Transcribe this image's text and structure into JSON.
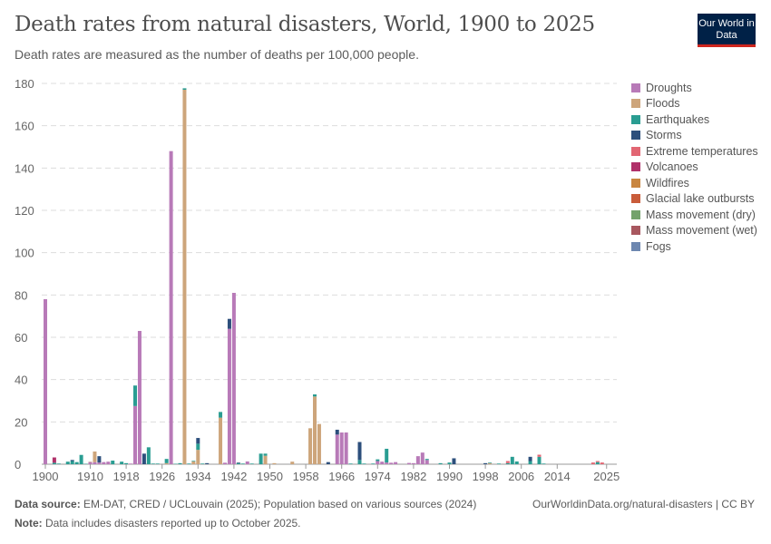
{
  "header": {
    "title": "Death rates from natural disasters, World, 1900 to 2025",
    "subtitle": "Death rates are measured as the number of deaths per 100,000 people.",
    "logo": "Our World in Data"
  },
  "footer": {
    "source_label": "Data source:",
    "source": " EM-DAT, CRED / UCLouvain (2025); Population based on various sources (2024)",
    "url": "OurWorldinData.org/natural-disasters | CC BY",
    "note_label": "Note:",
    "note": " Data includes disasters reported up to October 2025."
  },
  "chart_data": {
    "type": "bar",
    "stacked": true,
    "title": "Death rates from natural disasters, World, 1900 to 2025",
    "ylim": [
      0,
      180
    ],
    "xlim": [
      1900,
      2025
    ],
    "grid": "horizontal-dashed",
    "legend": "right",
    "yticks": [
      "0",
      "20",
      "40",
      "60",
      "80",
      "100",
      "120",
      "140",
      "160",
      "180"
    ],
    "xticks": [
      "1900",
      "1910",
      "1918",
      "1926",
      "1934",
      "1942",
      "1950",
      "1958",
      "1966",
      "1974",
      "1982",
      "1990",
      "1998",
      "2006",
      "2014",
      "2025"
    ],
    "series": [
      {
        "name": "Droughts",
        "color": "#b87ab8",
        "points": [
          [
            1900,
            78
          ],
          [
            1910,
            1
          ],
          [
            1911,
            1
          ],
          [
            1912,
            0.8
          ],
          [
            1913,
            1
          ],
          [
            1914,
            1.2
          ],
          [
            1919,
            0.3
          ],
          [
            1920,
            27.5
          ],
          [
            1921,
            63
          ],
          [
            1928,
            148
          ],
          [
            1940,
            0.7
          ],
          [
            1941,
            64
          ],
          [
            1942,
            81
          ],
          [
            1945,
            1.3
          ],
          [
            1965,
            14
          ],
          [
            1966,
            15
          ],
          [
            1967,
            15
          ],
          [
            1974,
            1.5
          ],
          [
            1975,
            1.2
          ],
          [
            1976,
            0.8
          ],
          [
            1977,
            0.7
          ],
          [
            1978,
            1
          ],
          [
            1981,
            0.6
          ],
          [
            1982,
            0.5
          ],
          [
            1983,
            3.8
          ],
          [
            1984,
            5.5
          ],
          [
            1985,
            2
          ]
        ]
      },
      {
        "name": "Floods",
        "color": "#cda57b",
        "points": [
          [
            1910,
            0.2
          ],
          [
            1911,
            5
          ],
          [
            1927,
            0.5
          ],
          [
            1931,
            177
          ],
          [
            1933,
            1.3
          ],
          [
            1934,
            6.8
          ],
          [
            1939,
            22
          ],
          [
            1949,
            4
          ],
          [
            1951,
            0.5
          ],
          [
            1955,
            1.2
          ],
          [
            1959,
            17
          ],
          [
            1960,
            32
          ],
          [
            1961,
            19
          ],
          [
            1999,
            0.5
          ]
        ]
      },
      {
        "name": "Earthquakes",
        "color": "#2a9d92",
        "points": [
          [
            1902,
            0.7
          ],
          [
            1903,
            0.3
          ],
          [
            1905,
            1.2
          ],
          [
            1906,
            1.5
          ],
          [
            1907,
            1
          ],
          [
            1908,
            4.4
          ],
          [
            1909,
            0.2
          ],
          [
            1915,
            1.7
          ],
          [
            1917,
            1.2
          ],
          [
            1918,
            0.5
          ],
          [
            1920,
            9.7
          ],
          [
            1923,
            8
          ],
          [
            1924,
            0.3
          ],
          [
            1925,
            0.3
          ],
          [
            1927,
            2
          ],
          [
            1929,
            0.2
          ],
          [
            1930,
            0.5
          ],
          [
            1931,
            0.7
          ],
          [
            1932,
            0.3
          ],
          [
            1933,
            0.3
          ],
          [
            1934,
            2.9
          ],
          [
            1935,
            0.3
          ],
          [
            1939,
            2.7
          ],
          [
            1943,
            0.5
          ],
          [
            1944,
            0.3
          ],
          [
            1946,
            0.3
          ],
          [
            1948,
            5
          ],
          [
            1949,
            1
          ],
          [
            1960,
            1
          ],
          [
            1968,
            0.3
          ],
          [
            1970,
            2
          ],
          [
            1971,
            0.3
          ],
          [
            1973,
            0.3
          ],
          [
            1974,
            0.8
          ],
          [
            1976,
            6.5
          ],
          [
            1985,
            0.5
          ],
          [
            1988,
            0.5
          ],
          [
            1990,
            0.8
          ],
          [
            1999,
            0.3
          ],
          [
            2001,
            0.3
          ],
          [
            2003,
            0.5
          ],
          [
            2004,
            3.5
          ],
          [
            2005,
            1.3
          ],
          [
            2008,
            1.5
          ],
          [
            2010,
            3.5
          ],
          [
            2011,
            0.3
          ],
          [
            2023,
            1
          ]
        ]
      },
      {
        "name": "Storms",
        "color": "#2d4f7c",
        "points": [
          [
            1906,
            0.5
          ],
          [
            1912,
            3
          ],
          [
            1922,
            5
          ],
          [
            1934,
            2.7
          ],
          [
            1936,
            0.5
          ],
          [
            1941,
            4.7
          ],
          [
            1943,
            0.3
          ],
          [
            1963,
            1
          ],
          [
            1965,
            2.3
          ],
          [
            1970,
            8.5
          ],
          [
            1991,
            2.8
          ],
          [
            1998,
            0.5
          ],
          [
            2008,
            2
          ]
        ]
      },
      {
        "name": "Extreme temperatures",
        "color": "#e26673",
        "points": [
          [
            2003,
            1
          ],
          [
            2010,
            1
          ],
          [
            2022,
            0.8
          ],
          [
            2023,
            0.5
          ],
          [
            2024,
            0.8
          ]
        ]
      },
      {
        "name": "Volcanoes",
        "color": "#b0316a",
        "points": [
          [
            1902,
            2.5
          ]
        ]
      },
      {
        "name": "Wildfires",
        "color": "#c98640",
        "points": []
      },
      {
        "name": "Glacial lake outbursts",
        "color": "#c95c3a",
        "points": []
      },
      {
        "name": "Mass movement (dry)",
        "color": "#74a26c",
        "points": []
      },
      {
        "name": "Mass movement (wet)",
        "color": "#a8575f",
        "points": []
      },
      {
        "name": "Fogs",
        "color": "#6d87b0",
        "points": []
      }
    ]
  }
}
